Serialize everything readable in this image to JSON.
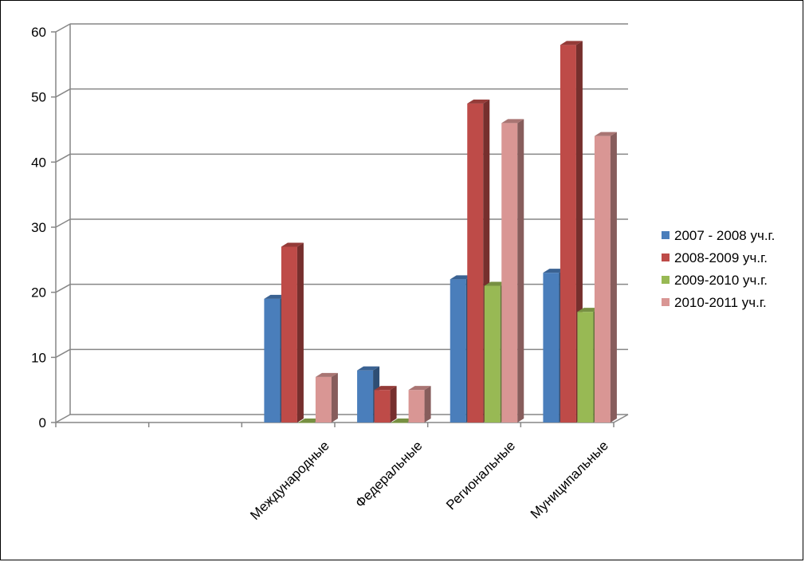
{
  "chart_data": {
    "type": "bar",
    "categories": [
      "",
      "",
      "Международные",
      "Федеральные",
      "Региональные",
      "Муниципальные"
    ],
    "series": [
      {
        "name": "2007 - 2008 уч.г.",
        "color": "#4a7ebb",
        "values": [
          null,
          null,
          19,
          8,
          22,
          23
        ]
      },
      {
        "name": "2008-2009 уч.г.",
        "color": "#be4b48",
        "values": [
          null,
          null,
          27,
          5,
          49,
          58
        ]
      },
      {
        "name": "2009-2010 уч.г.",
        "color": "#98b954",
        "values": [
          null,
          null,
          0,
          0,
          21,
          17
        ]
      },
      {
        "name": "2010-2011 уч.г.",
        "color": "#d99694",
        "values": [
          null,
          null,
          7,
          5,
          46,
          44
        ]
      }
    ],
    "y_ticks": [
      "0",
      "10",
      "20",
      "30",
      "40",
      "50",
      "60"
    ],
    "ylim": [
      0,
      60
    ],
    "title": "",
    "xlabel": "",
    "ylabel": "",
    "grid": true,
    "legend_position": "right",
    "three_d": true
  }
}
